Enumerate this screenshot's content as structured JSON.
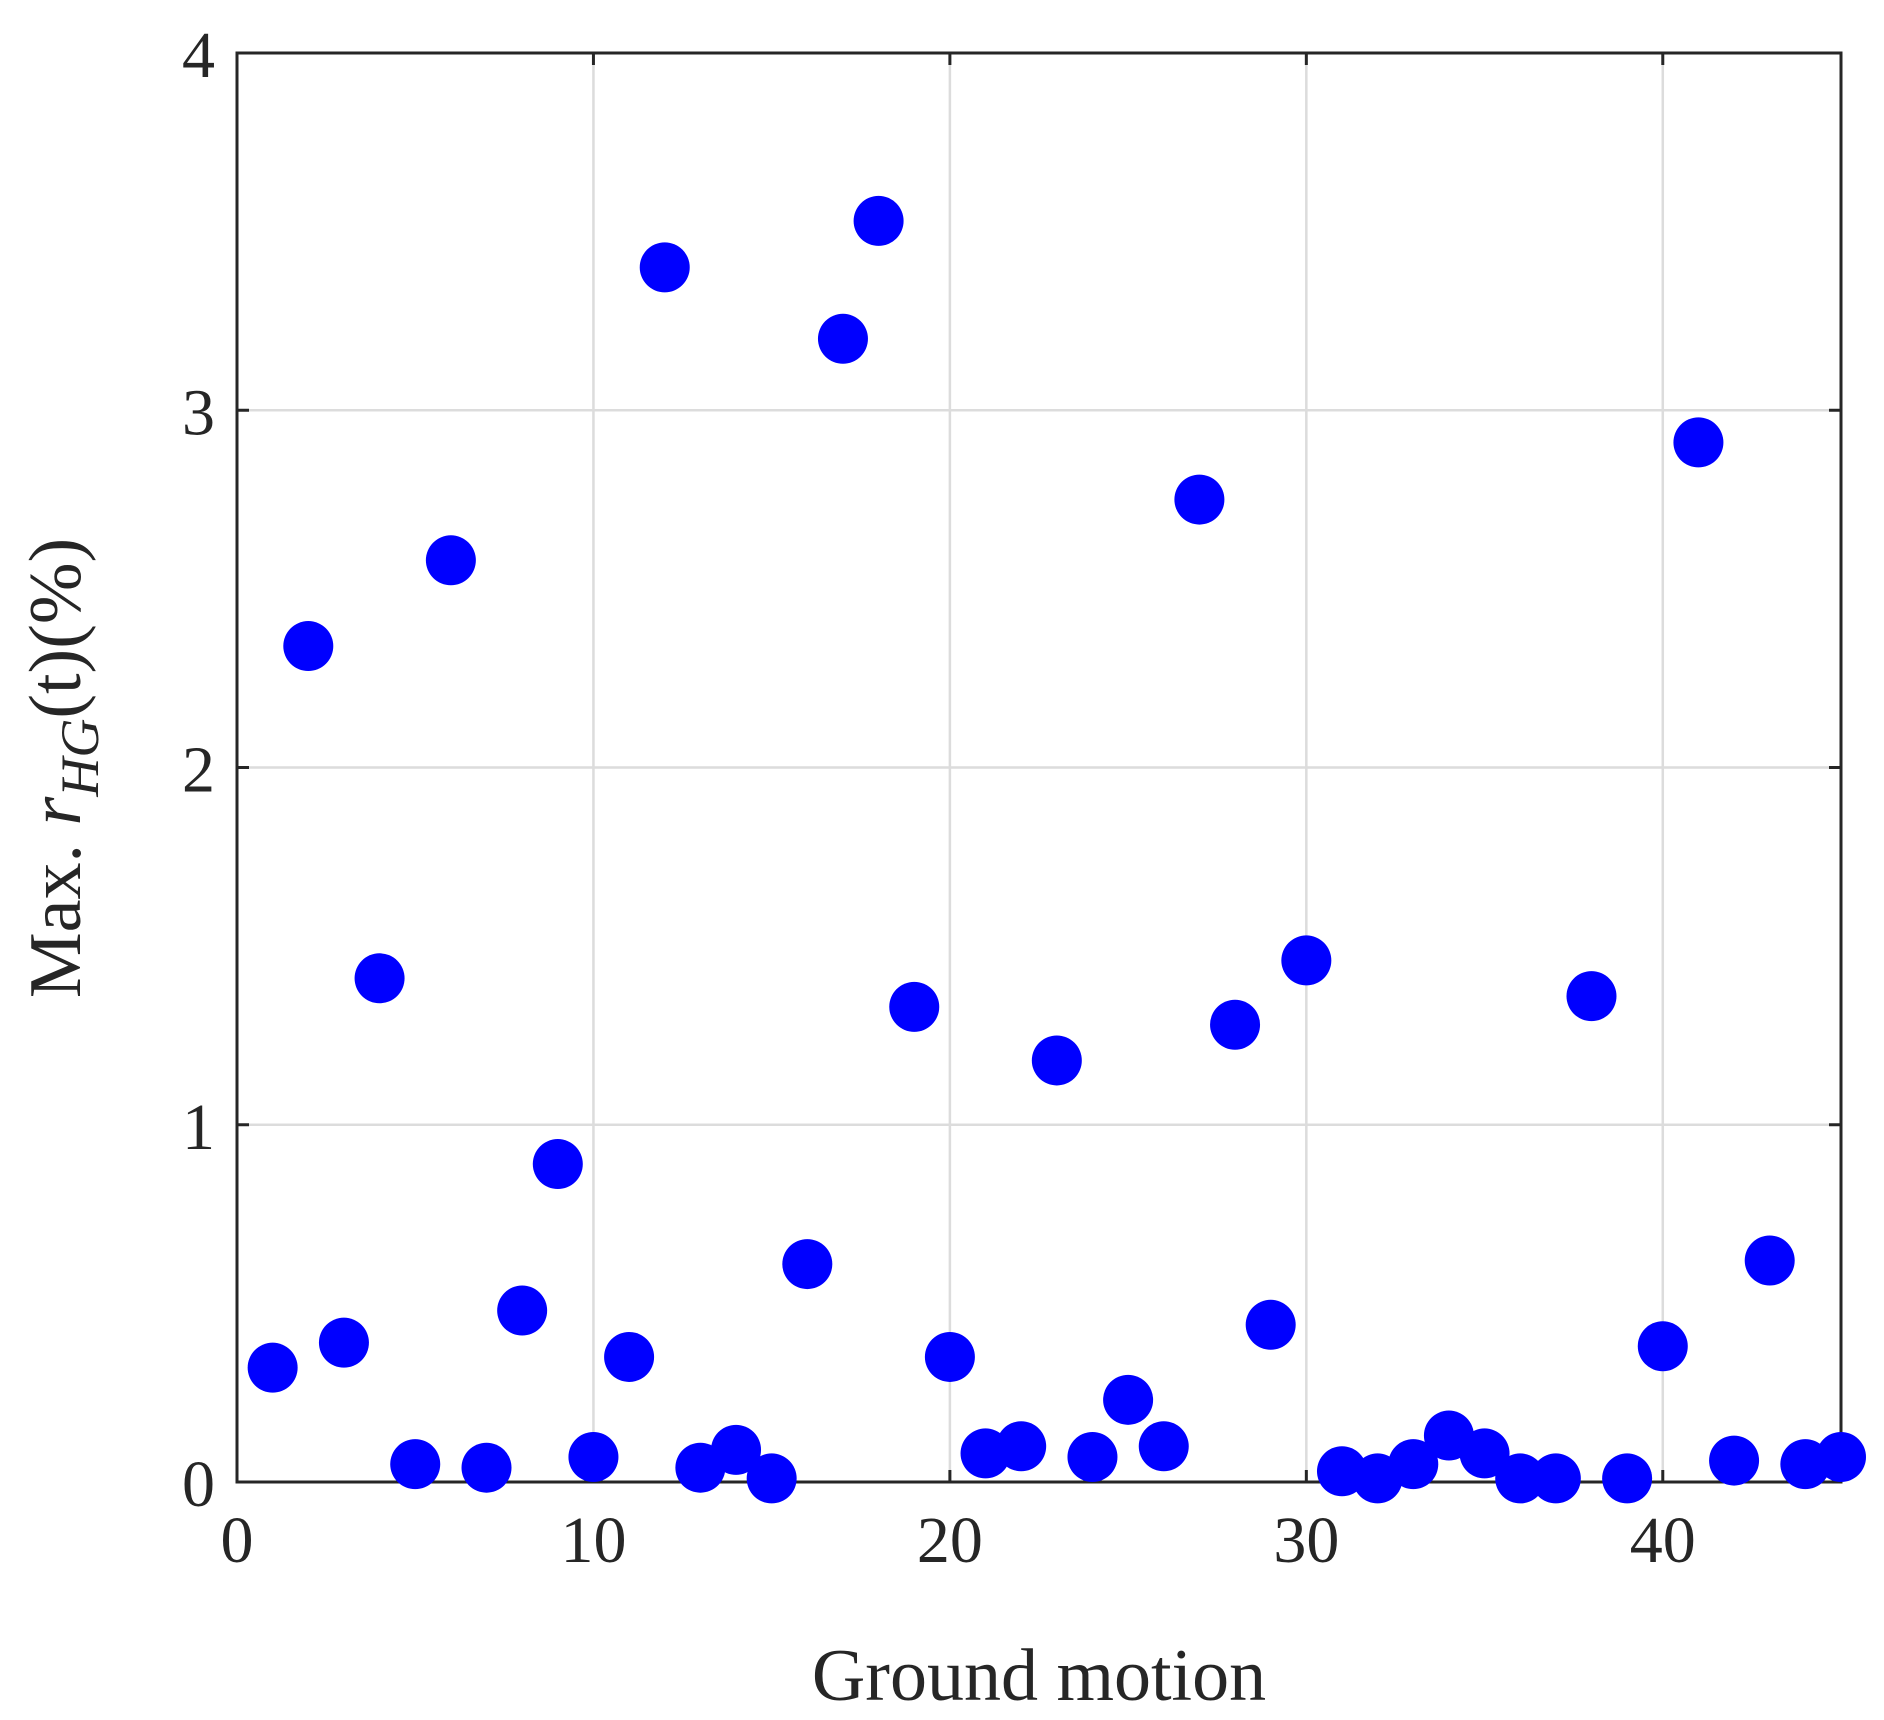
{
  "chart_data": {
    "type": "scatter",
    "xlabel": "Ground motion",
    "ylabel": {
      "text": "Max. ",
      "var": "r",
      "sub": "HG",
      "suffix": "(t)(%)"
    },
    "x": [
      1,
      2,
      3,
      4,
      5,
      6,
      7,
      8,
      9,
      10,
      11,
      12,
      13,
      14,
      15,
      16,
      17,
      18,
      19,
      20,
      21,
      22,
      23,
      24,
      25,
      26,
      27,
      28,
      29,
      30,
      31,
      32,
      33,
      34,
      35,
      36,
      37,
      38,
      39,
      40,
      41,
      42,
      43,
      44,
      45
    ],
    "series": [
      {
        "color": "#0000ff",
        "values": [
          0.32,
          2.34,
          0.39,
          1.41,
          0.05,
          2.58,
          0.04,
          0.48,
          0.89,
          0.07,
          0.35,
          3.4,
          0.04,
          0.09,
          0.01,
          0.61,
          3.2,
          3.53,
          1.33,
          0.35,
          0.08,
          0.1,
          1.18,
          0.07,
          0.23,
          0.1,
          2.75,
          1.28,
          0.44,
          1.46,
          0.03,
          0.01,
          0.05,
          0.13,
          0.08,
          0.01,
          0.01,
          1.36,
          0.01,
          0.38,
          2.91,
          0.06,
          0.62,
          0.05,
          0.07
        ]
      }
    ],
    "xlim": [
      0,
      45
    ],
    "xticks": [
      0,
      10,
      20,
      30,
      40
    ],
    "ylim": [
      0,
      4
    ],
    "yticks": [
      0,
      1,
      2,
      3,
      4
    ],
    "grid": true
  }
}
